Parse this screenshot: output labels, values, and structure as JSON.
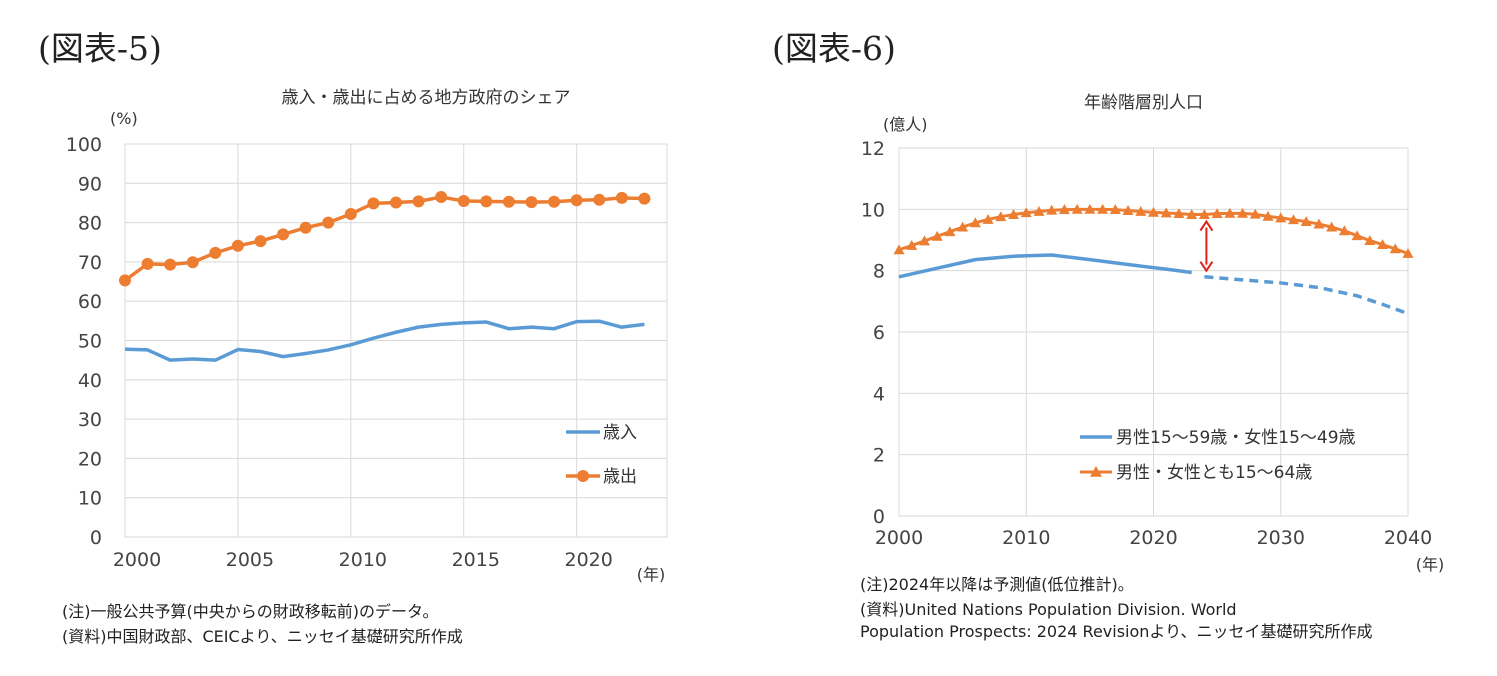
{
  "figures": [
    {
      "label": "(図表-5)",
      "notes": [
        "(注)一般公共予算(中央からの財政移転前)のデータ。",
        "(資料)中国財政部、CEICより、ニッセイ基礎研究所作成"
      ]
    },
    {
      "label": "(図表-6)",
      "notes": [
        "(注)2024年以降は予測値(低位推計)。",
        "(資料)United Nations Population Division. World",
        "Population Prospects: 2024 Revisionより、ニッセイ基礎研究所作成"
      ]
    }
  ],
  "chart_data": [
    {
      "type": "line",
      "title": "歳入・歳出に占める地方政府のシェア",
      "ylabel": "(%)",
      "xlabel": "(年)",
      "xlim": [
        2000,
        2024
      ],
      "ylim": [
        0,
        100
      ],
      "yticks": [
        0,
        10,
        20,
        30,
        40,
        50,
        60,
        70,
        80,
        90,
        100
      ],
      "xticks": [
        2000,
        2005,
        2010,
        2015,
        2020
      ],
      "grid": true,
      "legend_position": "bottom-right",
      "series": [
        {
          "name": "歳入",
          "color": "#5b9bd5",
          "marker": "none",
          "x": [
            2000,
            2001,
            2002,
            2003,
            2004,
            2005,
            2006,
            2007,
            2008,
            2009,
            2010,
            2011,
            2012,
            2013,
            2014,
            2015,
            2016,
            2017,
            2018,
            2019,
            2020,
            2021,
            2022,
            2023
          ],
          "values": [
            47.8,
            47.6,
            45.0,
            45.3,
            45.0,
            47.7,
            47.2,
            45.9,
            46.7,
            47.6,
            48.9,
            50.6,
            52.1,
            53.4,
            54.1,
            54.5,
            54.7,
            53.0,
            53.4,
            53.0,
            54.8,
            54.9,
            53.4,
            54.1
          ]
        },
        {
          "name": "歳出",
          "color": "#ed7d31",
          "marker": "circle",
          "x": [
            2000,
            2001,
            2002,
            2003,
            2004,
            2005,
            2006,
            2007,
            2008,
            2009,
            2010,
            2011,
            2012,
            2013,
            2014,
            2015,
            2016,
            2017,
            2018,
            2019,
            2020,
            2021,
            2022,
            2023
          ],
          "values": [
            65.3,
            69.5,
            69.3,
            69.9,
            72.3,
            74.1,
            75.3,
            77.0,
            78.7,
            80.0,
            82.2,
            84.9,
            85.1,
            85.4,
            86.5,
            85.5,
            85.4,
            85.3,
            85.2,
            85.3,
            85.7,
            85.8,
            86.3,
            86.1
          ]
        }
      ]
    },
    {
      "type": "line",
      "title": "年齢階層別人口",
      "ylabel": "(億人)",
      "xlabel": "(年)",
      "xlim": [
        2000,
        2040
      ],
      "ylim": [
        0,
        12
      ],
      "yticks": [
        0,
        2,
        4,
        6,
        8,
        10,
        12
      ],
      "xticks": [
        2000,
        2010,
        2020,
        2030,
        2040
      ],
      "grid": true,
      "legend_position": "bottom-center",
      "projection_start": 2024,
      "annotation": "double-headed red arrow at 2024 spanning the gap between the two series",
      "series": [
        {
          "name": "男性15～59歳・女性15～49歳",
          "color": "#5b9bd5",
          "marker": "none",
          "x": [
            2000,
            2003,
            2006,
            2009,
            2012,
            2015,
            2018,
            2021,
            2023,
            2024,
            2027,
            2030,
            2033,
            2036,
            2038,
            2040
          ],
          "values": [
            7.8,
            8.08,
            8.36,
            8.47,
            8.51,
            8.36,
            8.2,
            8.05,
            7.94,
            7.8,
            7.7,
            7.6,
            7.45,
            7.18,
            6.9,
            6.6
          ]
        },
        {
          "name": "男性・女性とも15～64歳",
          "color": "#ed7d31",
          "marker": "triangle",
          "x": [
            2000,
            2001,
            2002,
            2003,
            2004,
            2005,
            2006,
            2007,
            2008,
            2009,
            2010,
            2011,
            2012,
            2013,
            2014,
            2015,
            2016,
            2017,
            2018,
            2019,
            2020,
            2021,
            2022,
            2023,
            2024,
            2025,
            2026,
            2027,
            2028,
            2029,
            2030,
            2031,
            2032,
            2033,
            2034,
            2035,
            2036,
            2037,
            2038,
            2039,
            2040
          ],
          "values": [
            8.68,
            8.82,
            8.97,
            9.12,
            9.27,
            9.42,
            9.56,
            9.67,
            9.76,
            9.83,
            9.89,
            9.93,
            9.97,
            9.99,
            10.0,
            10.0,
            10.0,
            9.99,
            9.96,
            9.93,
            9.9,
            9.88,
            9.86,
            9.83,
            9.83,
            9.86,
            9.87,
            9.87,
            9.84,
            9.77,
            9.72,
            9.66,
            9.6,
            9.52,
            9.42,
            9.3,
            9.14,
            8.98,
            8.85,
            8.71,
            8.56
          ]
        }
      ]
    }
  ]
}
